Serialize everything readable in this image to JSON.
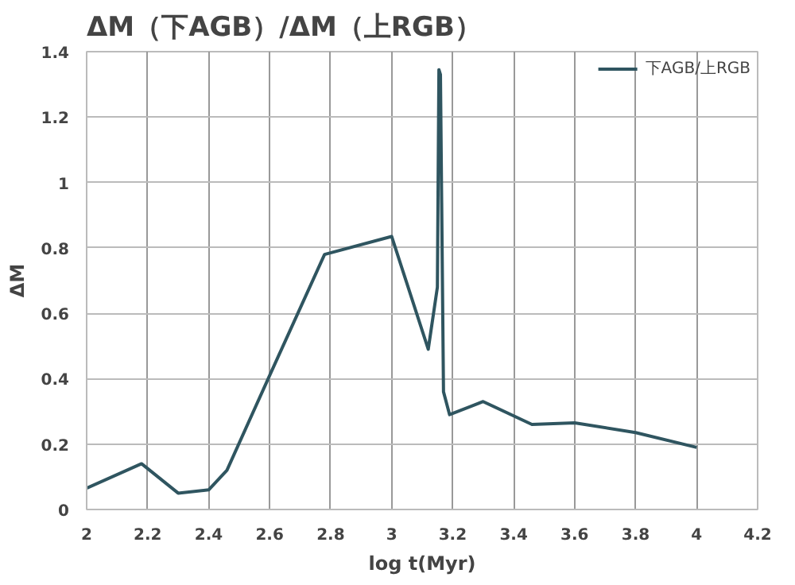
{
  "chart_data": {
    "type": "line",
    "title": "ΔM（下AGB）/ΔM（上RGB）",
    "xlabel": "log t(Myr)",
    "ylabel": "ΔM",
    "x": [
      2.0,
      2.18,
      2.3,
      2.4,
      2.46,
      2.6,
      2.78,
      3.0,
      3.12,
      3.15,
      3.155,
      3.16,
      3.17,
      3.19,
      3.3,
      3.46,
      3.6,
      3.8,
      4.0
    ],
    "series": [
      {
        "name": "下AGB/上RGB",
        "color": "#2f5560",
        "values": [
          0.065,
          0.14,
          0.05,
          0.06,
          0.12,
          0.41,
          0.78,
          0.835,
          0.49,
          0.68,
          1.345,
          1.33,
          0.36,
          0.29,
          0.33,
          0.26,
          0.265,
          0.235,
          0.19
        ]
      }
    ],
    "xlim": [
      2,
      4.2
    ],
    "ylim": [
      0,
      1.4
    ],
    "xticks": [
      2,
      2.2,
      2.4,
      2.6,
      2.8,
      3,
      3.2,
      3.4,
      3.6,
      3.8,
      4,
      4.2
    ],
    "yticks": [
      0,
      0.2,
      0.4,
      0.6,
      0.8,
      1,
      1.2,
      1.4
    ],
    "grid": true,
    "legend": "top right",
    "marker": "none",
    "line_style": "solid"
  }
}
